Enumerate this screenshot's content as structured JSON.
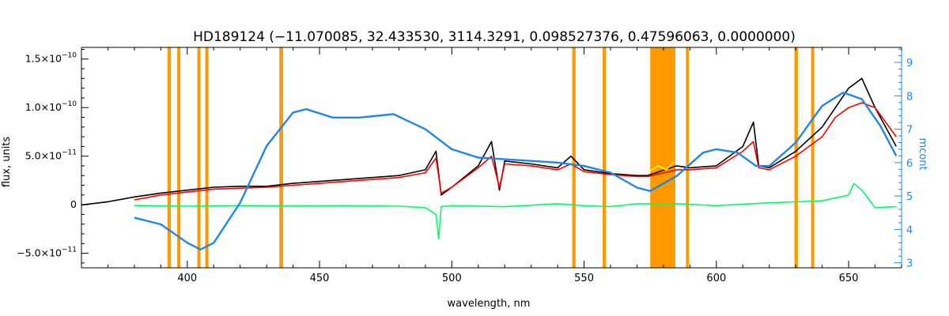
{
  "chart_data": {
    "type": "line",
    "title": "HD189124   (−11.070085, 32.433530, 3114.3291, 0.098527376, 0.47596063, 0.0000000)",
    "xlabel": "wavelength, nm",
    "ylabel_left": "flux, units",
    "ylabel_right": "mcont",
    "xlim": [
      360,
      670
    ],
    "ylim_left": [
      -6.5e-11,
      1.62e-10
    ],
    "ylim_right": [
      2.85,
      9.45
    ],
    "x_ticks": [
      400,
      450,
      500,
      550,
      600,
      650
    ],
    "x_tick_labels": [
      "400",
      "450",
      "500",
      "550",
      "600",
      "650"
    ],
    "y_ticks_left": [
      -5e-11,
      0,
      5e-11,
      1e-10,
      1.5e-10
    ],
    "y_tick_labels_left": [
      {
        "mantissa": "−5.0×10",
        "exp": "−11"
      },
      {
        "mantissa": "0",
        "exp": ""
      },
      {
        "mantissa": "5.0×10",
        "exp": "−11"
      },
      {
        "mantissa": "1.0×10",
        "exp": "−10"
      },
      {
        "mantissa": "1.5×10",
        "exp": "−10"
      }
    ],
    "y_ticks_right": [
      3,
      4,
      5,
      6,
      7,
      8,
      9
    ],
    "y_tick_labels_right": [
      "3",
      "4",
      "5",
      "6",
      "7",
      "8",
      "9"
    ],
    "masked_bands": [
      [
        392.5,
        393.8
      ],
      [
        396.2,
        397.4
      ],
      [
        403.8,
        405.0
      ],
      [
        406.8,
        408.0
      ],
      [
        434.8,
        436.2
      ],
      [
        545.5,
        546.8
      ],
      [
        557.0,
        558.3
      ],
      [
        575.0,
        584.5
      ],
      [
        588.5,
        589.6
      ],
      [
        629.5,
        630.8
      ],
      [
        635.8,
        637.0
      ]
    ],
    "series": [
      {
        "key": "observed",
        "color": "#000000",
        "axis": "left",
        "x": [
          360,
          370,
          380,
          390,
          400,
          410,
          420,
          430,
          440,
          450,
          460,
          470,
          480,
          490,
          494,
          496,
          500,
          510,
          515,
          518,
          520,
          530,
          540,
          545,
          550,
          560,
          570,
          574,
          585,
          590,
          600,
          610,
          614,
          616,
          620,
          630,
          640,
          645,
          650,
          655,
          660,
          668
        ],
        "y": [
          -2e-13,
          3e-12,
          8e-12,
          1.2e-11,
          1.5e-11,
          1.8e-11,
          1.9e-11,
          1.9e-11,
          2.2e-11,
          2.4e-11,
          2.6e-11,
          2.8e-11,
          3e-11,
          3.6e-11,
          5.5e-11,
          1e-11,
          1.8e-11,
          4e-11,
          6.5e-11,
          1.5e-11,
          4.5e-11,
          4.2e-11,
          3.8e-11,
          5e-11,
          3.6e-11,
          3.2e-11,
          3e-11,
          3e-11,
          4e-11,
          3.8e-11,
          4e-11,
          6e-11,
          8.5e-11,
          4e-11,
          3.8e-11,
          5.5e-11,
          8e-11,
          1e-10,
          1.2e-10,
          1.3e-10,
          1e-10,
          6e-11
        ]
      },
      {
        "key": "model",
        "color": "#ff0000",
        "axis": "left",
        "x": [
          380,
          390,
          400,
          410,
          420,
          430,
          440,
          450,
          460,
          470,
          480,
          490,
          494,
          496,
          500,
          510,
          515,
          518,
          520,
          530,
          540,
          545,
          550,
          560,
          570,
          574,
          585,
          590,
          600,
          610,
          614,
          616,
          620,
          630,
          640,
          645,
          650,
          655,
          660,
          668
        ],
        "y": [
          5e-12,
          1e-11,
          1.3e-11,
          1.6e-11,
          1.7e-11,
          1.8e-11,
          2e-11,
          2.2e-11,
          2.4e-11,
          2.6e-11,
          2.8e-11,
          3.3e-11,
          4.8e-11,
          1.2e-11,
          1.8e-11,
          3.8e-11,
          5e-11,
          1.8e-11,
          4.2e-11,
          4e-11,
          3.6e-11,
          4.2e-11,
          3.4e-11,
          3.1e-11,
          2.9e-11,
          2.9e-11,
          3.6e-11,
          3.6e-11,
          3.8e-11,
          5.5e-11,
          6.5e-11,
          3.8e-11,
          3.6e-11,
          5e-11,
          7e-11,
          9e-11,
          1e-10,
          1.05e-10,
          1e-10,
          7e-11
        ]
      },
      {
        "key": "masked_model",
        "color": "#ffff00",
        "axis": "left",
        "x": [
          575,
          578,
          581,
          584
        ],
        "y": [
          3.5e-11,
          4e-11,
          3.6e-11,
          4.4e-11
        ]
      },
      {
        "key": "residual",
        "color": "#00ff66",
        "axis": "left",
        "x": [
          380,
          400,
          420,
          440,
          460,
          480,
          490,
          494,
          495,
          496,
          500,
          520,
          540,
          550,
          560,
          570,
          586,
          600,
          620,
          640,
          650,
          652,
          655,
          660,
          668
        ],
        "y": [
          -8e-13,
          -1.5e-12,
          -1e-12,
          -1.2e-12,
          -1e-12,
          -1.5e-12,
          -3e-12,
          -1e-11,
          -3.5e-11,
          -2e-12,
          -1e-12,
          -2e-12,
          1e-12,
          -1e-12,
          -2e-12,
          1e-12,
          1e-12,
          -1e-12,
          2e-12,
          4e-12,
          1e-11,
          2.2e-11,
          1.5e-11,
          -3e-12,
          -2e-12
        ]
      },
      {
        "key": "continuum",
        "color": "#1e88e5",
        "axis": "right",
        "x": [
          380,
          390,
          400,
          405,
          410,
          420,
          430,
          440,
          445,
          455,
          465,
          478,
          490,
          500,
          510,
          520,
          530,
          540,
          550,
          560,
          570,
          575,
          585,
          595,
          600,
          608,
          615,
          620,
          630,
          640,
          648,
          655,
          662,
          668
        ],
        "y": [
          4.35,
          4.15,
          3.6,
          3.4,
          3.6,
          4.8,
          6.5,
          7.5,
          7.6,
          7.35,
          7.35,
          7.45,
          7.0,
          6.4,
          6.15,
          6.1,
          6.05,
          6.0,
          5.9,
          5.7,
          5.25,
          5.15,
          5.6,
          6.3,
          6.4,
          6.3,
          5.9,
          5.9,
          6.6,
          7.7,
          8.1,
          7.9,
          7.1,
          6.2
        ]
      }
    ]
  }
}
